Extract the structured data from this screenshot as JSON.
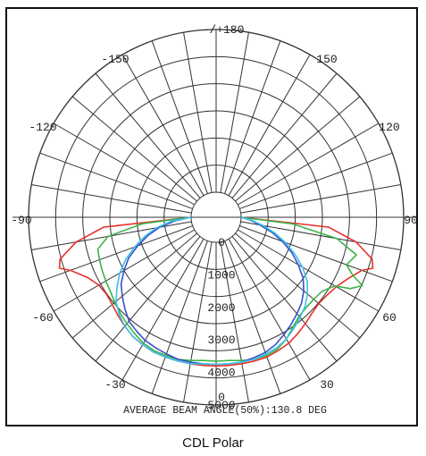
{
  "chart_data": {
    "type": "polar",
    "title": "",
    "caption": "CDL Polar",
    "footer_text": "AVERAGE BEAM ANGLE(50%):130.8 DEG",
    "radial_ticks": [
      "0",
      "1000",
      "2000",
      "3000",
      "4000",
      "5000"
    ],
    "radial_range": [
      0,
      5000
    ],
    "angle_labels": [
      {
        "angle": 180,
        "text": "-/+180"
      },
      {
        "angle": -150,
        "text": "-150"
      },
      {
        "angle": 150,
        "text": "150"
      },
      {
        "angle": -120,
        "text": "-120"
      },
      {
        "angle": 120,
        "text": "120"
      },
      {
        "angle": -90,
        "text": "-90"
      },
      {
        "angle": 90,
        "text": "90"
      },
      {
        "angle": -60,
        "text": "-60"
      },
      {
        "angle": 60,
        "text": "60"
      },
      {
        "angle": -30,
        "text": "-30"
      },
      {
        "angle": 30,
        "text": "30"
      },
      {
        "angle": 0,
        "text": "0"
      }
    ],
    "angle_gridline_step": 10,
    "grid": true,
    "series": [
      {
        "color": "#e8312b",
        "points": [
          [
            -90,
            0
          ],
          [
            -85,
            2700
          ],
          [
            -80,
            3600
          ],
          [
            -75,
            4200
          ],
          [
            -72,
            4300
          ],
          [
            -70,
            4000
          ],
          [
            -65,
            3600
          ],
          [
            -60,
            3400
          ],
          [
            -55,
            3350
          ],
          [
            -50,
            3400
          ],
          [
            -45,
            3500
          ],
          [
            -40,
            3600
          ],
          [
            -35,
            3700
          ],
          [
            -30,
            3750
          ],
          [
            -25,
            3800
          ],
          [
            -20,
            3800
          ],
          [
            -15,
            3800
          ],
          [
            -10,
            3800
          ],
          [
            -5,
            3800
          ],
          [
            0,
            3800
          ],
          [
            5,
            3800
          ],
          [
            10,
            3800
          ],
          [
            15,
            3800
          ],
          [
            20,
            3800
          ],
          [
            25,
            3750
          ],
          [
            30,
            3700
          ],
          [
            35,
            3600
          ],
          [
            40,
            3500
          ],
          [
            45,
            3400
          ],
          [
            50,
            3350
          ],
          [
            55,
            3400
          ],
          [
            60,
            3500
          ],
          [
            65,
            3700
          ],
          [
            70,
            4000
          ],
          [
            72,
            4300
          ],
          [
            75,
            4200
          ],
          [
            80,
            3600
          ],
          [
            85,
            2700
          ],
          [
            90,
            0
          ]
        ]
      },
      {
        "color": "#3ab54a",
        "points": [
          [
            -90,
            0
          ],
          [
            -85,
            1500
          ],
          [
            -80,
            2600
          ],
          [
            -75,
            3000
          ],
          [
            -70,
            3050
          ],
          [
            -65,
            3100
          ],
          [
            -60,
            3150
          ],
          [
            -55,
            3200
          ],
          [
            -50,
            3300
          ],
          [
            -45,
            3400
          ],
          [
            -40,
            3500
          ],
          [
            -35,
            3600
          ],
          [
            -30,
            3700
          ],
          [
            -25,
            3750
          ],
          [
            -20,
            3750
          ],
          [
            -15,
            3750
          ],
          [
            -10,
            3700
          ],
          [
            -5,
            3650
          ],
          [
            0,
            3650
          ],
          [
            5,
            3650
          ],
          [
            10,
            3700
          ],
          [
            15,
            3750
          ],
          [
            20,
            3750
          ],
          [
            25,
            3700
          ],
          [
            30,
            3550
          ],
          [
            35,
            3350
          ],
          [
            40,
            3200
          ],
          [
            45,
            3150
          ],
          [
            50,
            3150
          ],
          [
            55,
            3200
          ],
          [
            60,
            3450
          ],
          [
            62,
            3900
          ],
          [
            65,
            4200
          ],
          [
            67,
            3800
          ],
          [
            70,
            3500
          ],
          [
            75,
            3700
          ],
          [
            80,
            3000
          ],
          [
            85,
            1600
          ],
          [
            90,
            0
          ]
        ]
      },
      {
        "color": "#3b4fc9",
        "points": [
          [
            -90,
            0
          ],
          [
            -85,
            500
          ],
          [
            -80,
            1000
          ],
          [
            -75,
            1400
          ],
          [
            -70,
            1800
          ],
          [
            -65,
            2200
          ],
          [
            -60,
            2500
          ],
          [
            -55,
            2800
          ],
          [
            -50,
            3000
          ],
          [
            -45,
            3200
          ],
          [
            -40,
            3400
          ],
          [
            -35,
            3500
          ],
          [
            -30,
            3600
          ],
          [
            -25,
            3650
          ],
          [
            -20,
            3700
          ],
          [
            -15,
            3750
          ],
          [
            -10,
            3750
          ],
          [
            -5,
            3750
          ],
          [
            0,
            3750
          ],
          [
            5,
            3750
          ],
          [
            10,
            3750
          ],
          [
            15,
            3700
          ],
          [
            20,
            3650
          ],
          [
            25,
            3550
          ],
          [
            30,
            3400
          ],
          [
            35,
            3250
          ],
          [
            40,
            3100
          ],
          [
            45,
            2950
          ],
          [
            50,
            2750
          ],
          [
            55,
            2500
          ],
          [
            60,
            2150
          ],
          [
            65,
            1800
          ],
          [
            70,
            1400
          ],
          [
            75,
            1000
          ],
          [
            80,
            600
          ],
          [
            85,
            300
          ],
          [
            90,
            0
          ]
        ]
      },
      {
        "color": "#39c2e8",
        "points": [
          [
            -90,
            0
          ],
          [
            -85,
            600
          ],
          [
            -80,
            1100
          ],
          [
            -75,
            1500
          ],
          [
            -70,
            1900
          ],
          [
            -65,
            2300
          ],
          [
            -60,
            2650
          ],
          [
            -55,
            2950
          ],
          [
            -50,
            3250
          ],
          [
            -45,
            3450
          ],
          [
            -40,
            3600
          ],
          [
            -35,
            3700
          ],
          [
            -30,
            3750
          ],
          [
            -25,
            3800
          ],
          [
            -20,
            3800
          ],
          [
            -15,
            3800
          ],
          [
            -10,
            3800
          ],
          [
            -5,
            3750
          ],
          [
            0,
            3750
          ],
          [
            5,
            3750
          ],
          [
            10,
            3750
          ],
          [
            15,
            3750
          ],
          [
            20,
            3700
          ],
          [
            25,
            3650
          ],
          [
            30,
            3550
          ],
          [
            35,
            3400
          ],
          [
            40,
            3250
          ],
          [
            45,
            3100
          ],
          [
            50,
            2900
          ],
          [
            55,
            2650
          ],
          [
            60,
            2300
          ],
          [
            65,
            1900
          ],
          [
            70,
            1500
          ],
          [
            75,
            1100
          ],
          [
            80,
            700
          ],
          [
            85,
            350
          ],
          [
            90,
            0
          ]
        ]
      }
    ]
  }
}
